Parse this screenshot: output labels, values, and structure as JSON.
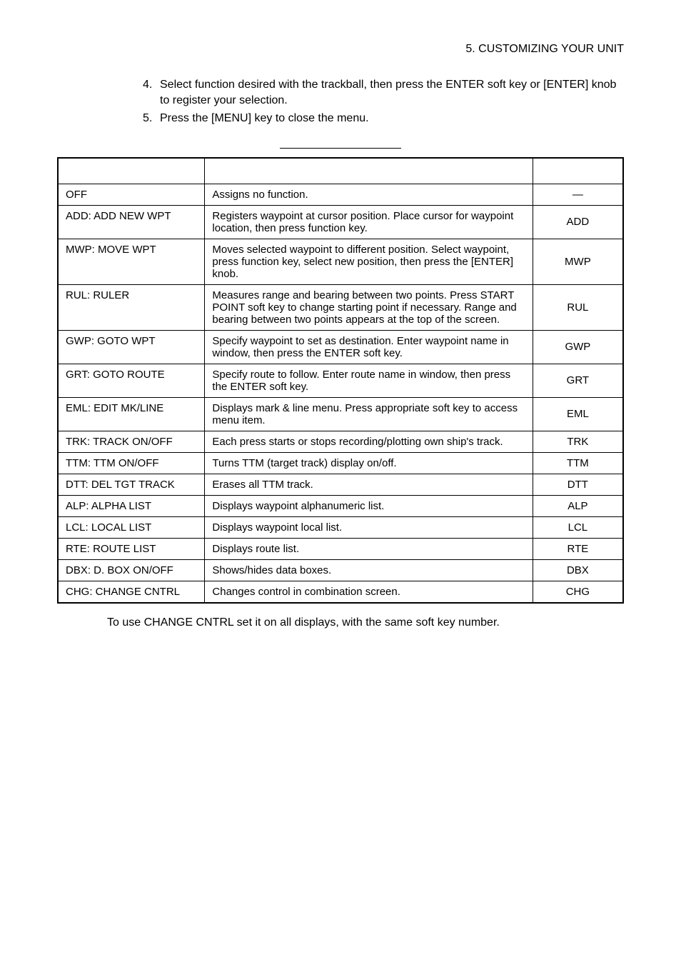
{
  "header": {
    "section_title": "5.  CUSTOMIZING YOUR UNIT"
  },
  "instructions": {
    "items": [
      {
        "num": "4.",
        "text": "Select function desired with the trackball, then press the ENTER soft key or [ENTER] knob to register your selection."
      },
      {
        "num": "5.",
        "text": "Press the [MENU] key to close the menu."
      }
    ]
  },
  "table": {
    "type": "table",
    "border_color": "#000000",
    "background_color": "#ffffff",
    "font_size_pt": 11,
    "columns": [
      {
        "header": "",
        "width_pct": 26,
        "align": "left"
      },
      {
        "header": "",
        "width_pct": 58,
        "align": "left"
      },
      {
        "header": "",
        "width_pct": 16,
        "align": "center"
      }
    ],
    "rows": [
      {
        "label": "OFF",
        "function": "Assigns no function.",
        "lbl": "—"
      },
      {
        "label": "ADD: ADD NEW WPT",
        "function": "Registers waypoint at cursor position. Place cursor for waypoint location, then press function key.",
        "lbl": "ADD"
      },
      {
        "label": "MWP: MOVE WPT",
        "function": "Moves selected waypoint to different position. Select waypoint, press function key, select new position, then press the [ENTER] knob.",
        "lbl": "MWP"
      },
      {
        "label": "RUL: RULER",
        "function": "Measures range and bearing between two points. Press START POINT soft key to change starting point if necessary. Range and bearing between two points appears at the top of the screen.",
        "lbl": "RUL"
      },
      {
        "label": "GWP: GOTO WPT",
        "function": "Specify waypoint to set as destination. Enter waypoint name in window, then press the ENTER soft key.",
        "lbl": "GWP"
      },
      {
        "label": "GRT: GOTO ROUTE",
        "function": "Specify route to follow. Enter route name in window, then press the ENTER soft key.",
        "lbl": "GRT"
      },
      {
        "label": "EML: EDIT MK/LINE",
        "function": "Displays mark & line menu. Press appropriate soft key to access menu item.",
        "lbl": "EML"
      },
      {
        "label": "TRK: TRACK ON/OFF",
        "function": "Each press starts or stops recording/plotting own ship's track.",
        "lbl": "TRK"
      },
      {
        "label": "TTM: TTM ON/OFF",
        "function": "Turns TTM (target track) display on/off.",
        "lbl": "TTM"
      },
      {
        "label": "DTT: DEL TGT TRACK",
        "function": "Erases all TTM track.",
        "lbl": "DTT"
      },
      {
        "label": "ALP: ALPHA LIST",
        "function": "Displays waypoint alphanumeric list.",
        "lbl": "ALP"
      },
      {
        "label": "LCL: LOCAL LIST",
        "function": "Displays waypoint local list.",
        "lbl": "LCL"
      },
      {
        "label": "RTE: ROUTE LIST",
        "function": "Displays route list.",
        "lbl": "RTE"
      },
      {
        "label": "DBX: D. BOX ON/OFF",
        "function": "Shows/hides data boxes.",
        "lbl": "DBX"
      },
      {
        "label": "CHG: CHANGE CNTRL",
        "function": "Changes control in combination screen.",
        "lbl": "CHG"
      }
    ]
  },
  "note": {
    "text": "To use CHANGE CNTRL set it on all displays, with the same soft key number."
  }
}
